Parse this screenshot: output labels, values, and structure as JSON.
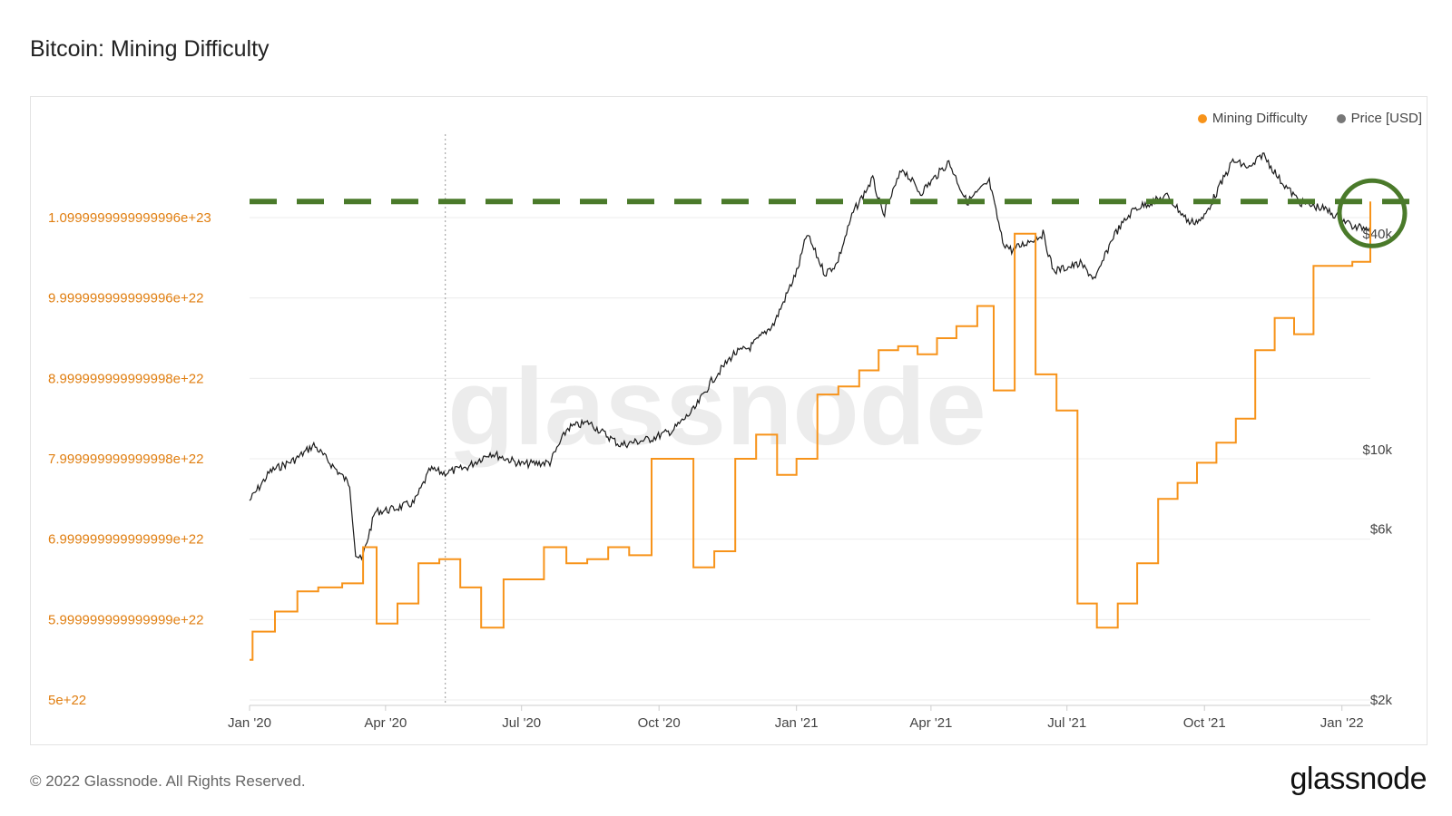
{
  "header": {
    "title": "Bitcoin: Mining Difficulty"
  },
  "footer": {
    "copyright": "© 2022 Glassnode. All Rights Reserved.",
    "brand": "glassnode"
  },
  "watermark": "glassnode",
  "colors": {
    "difficulty": "#f7931a",
    "price": "#1a1a1a",
    "annotation": "#4a7a2a",
    "grid": "#ececec",
    "left_tick": "#e07e10"
  },
  "chart_data": {
    "type": "line",
    "title": "Bitcoin: Mining Difficulty",
    "x_tick_labels": [
      "Jan '20",
      "Apr '20",
      "Jul '20",
      "Oct '20",
      "Jan '21",
      "Apr '21",
      "Jul '21",
      "Oct '21",
      "Jan '22"
    ],
    "x_ticks": [
      "2020-01-01",
      "2020-04-01",
      "2020-07-01",
      "2020-10-01",
      "2021-01-01",
      "2021-04-01",
      "2021-07-01",
      "2021-10-01",
      "2022-01-01"
    ],
    "x_range": [
      "2020-01-01",
      "2022-01-20"
    ],
    "y_left": {
      "tick_labels": [
        "5e+22",
        "5.999999999999999e+22",
        "6.999999999999999e+22",
        "7.999999999999998e+22",
        "8.999999999999998e+22",
        "9.999999999999996e+22",
        "1.0999999999999996e+23"
      ],
      "ticks": [
        5e+22,
        6e+22,
        7e+22,
        8e+22,
        9e+22,
        1e+23,
        1.1e+23
      ],
      "range": [
        5e+22,
        1.13e+23
      ]
    },
    "y_right": {
      "scale": "log",
      "tick_labels": [
        "$2k",
        "$6k",
        "$10k",
        "$40k"
      ],
      "ticks": [
        2000,
        6000,
        10000,
        40000
      ],
      "range": [
        2000,
        63000
      ]
    },
    "grid": true,
    "legend_position": "top-right",
    "series": [
      {
        "name": "Mining Difficulty",
        "axis": "left",
        "color": "#f7931a",
        "step": true,
        "dates": [
          "2020-01-01",
          "2020-01-03",
          "2020-01-18",
          "2020-02-02",
          "2020-02-16",
          "2020-03-03",
          "2020-03-17",
          "2020-03-26",
          "2020-04-09",
          "2020-04-23",
          "2020-05-07",
          "2020-05-21",
          "2020-06-04",
          "2020-06-19",
          "2020-07-03",
          "2020-07-16",
          "2020-07-31",
          "2020-08-14",
          "2020-08-28",
          "2020-09-11",
          "2020-09-26",
          "2020-10-10",
          "2020-10-24",
          "2020-11-07",
          "2020-11-21",
          "2020-12-05",
          "2020-12-19",
          "2021-01-01",
          "2021-01-15",
          "2021-01-29",
          "2021-02-12",
          "2021-02-25",
          "2021-03-10",
          "2021-03-23",
          "2021-04-05",
          "2021-04-18",
          "2021-05-02",
          "2021-05-13",
          "2021-05-27",
          "2021-06-10",
          "2021-06-24",
          "2021-07-08",
          "2021-07-21",
          "2021-08-04",
          "2021-08-17",
          "2021-08-31",
          "2021-09-13",
          "2021-09-26",
          "2021-10-09",
          "2021-10-22",
          "2021-11-04",
          "2021-11-17",
          "2021-11-30",
          "2021-12-13",
          "2021-12-26",
          "2022-01-08",
          "2022-01-20"
        ],
        "values": [
          5.5e+22,
          5.85e+22,
          6.1e+22,
          6.35e+22,
          6.4e+22,
          6.45e+22,
          6.9e+22,
          5.95e+22,
          6.2e+22,
          6.7e+22,
          6.75e+22,
          6.4e+22,
          5.9e+22,
          6.5e+22,
          6.5e+22,
          6.9e+22,
          6.7e+22,
          6.75e+22,
          6.9e+22,
          6.8e+22,
          8e+22,
          8e+22,
          6.65e+22,
          6.85e+22,
          8e+22,
          8.3e+22,
          7.8e+22,
          8e+22,
          8.8e+22,
          8.9e+22,
          9.1e+22,
          9.35e+22,
          9.4e+22,
          9.3e+22,
          9.5e+22,
          9.65e+22,
          9.9e+22,
          8.85e+22,
          1.08e+23,
          9.05e+22,
          8.6e+22,
          6.2e+22,
          5.9e+22,
          6.2e+22,
          6.7e+22,
          7.5e+22,
          7.7e+22,
          7.95e+22,
          8.2e+22,
          8.5e+22,
          9.35e+22,
          9.75e+22,
          9.55e+22,
          1.04e+23,
          1.04e+23,
          1.045e+23,
          1.12e+23
        ]
      },
      {
        "name": "Price [USD]",
        "axis": "right",
        "color": "#1a1a1a",
        "dates": [
          "2020-01-01",
          "2020-01-15",
          "2020-02-01",
          "2020-02-13",
          "2020-03-01",
          "2020-03-08",
          "2020-03-12",
          "2020-03-16",
          "2020-03-25",
          "2020-04-05",
          "2020-04-20",
          "2020-05-01",
          "2020-05-10",
          "2020-05-25",
          "2020-06-10",
          "2020-07-01",
          "2020-07-20",
          "2020-08-01",
          "2020-08-15",
          "2020-09-05",
          "2020-09-25",
          "2020-10-10",
          "2020-10-25",
          "2020-11-05",
          "2020-11-20",
          "2020-12-01",
          "2020-12-17",
          "2021-01-02",
          "2021-01-08",
          "2021-01-20",
          "2021-01-28",
          "2021-02-08",
          "2021-02-21",
          "2021-02-28",
          "2021-03-13",
          "2021-03-25",
          "2021-04-13",
          "2021-04-25",
          "2021-05-10",
          "2021-05-19",
          "2021-05-25",
          "2021-06-15",
          "2021-06-22",
          "2021-07-10",
          "2021-07-20",
          "2021-08-01",
          "2021-08-15",
          "2021-09-06",
          "2021-09-21",
          "2021-09-30",
          "2021-10-20",
          "2021-11-01",
          "2021-11-09",
          "2021-11-20",
          "2021-12-04",
          "2021-12-20",
          "2022-01-05",
          "2022-01-10",
          "2022-01-20"
        ],
        "values": [
          7200,
          8700,
          9400,
          10300,
          8600,
          8000,
          5100,
          4900,
          6700,
          6800,
          7100,
          8800,
          8600,
          8900,
          9800,
          9100,
          9200,
          11500,
          11900,
          10300,
          10700,
          11300,
          13000,
          15500,
          18500,
          19300,
          22500,
          32000,
          40000,
          31000,
          33000,
          46000,
          57000,
          45000,
          61000,
          52000,
          63500,
          49000,
          56000,
          38000,
          36000,
          40000,
          31500,
          33000,
          29800,
          39500,
          47000,
          51000,
          43000,
          44000,
          64000,
          61000,
          67000,
          57000,
          49000,
          47000,
          43000,
          41500,
          42000
        ]
      }
    ],
    "annotations": [
      {
        "type": "dashed-hline",
        "axis": "left",
        "value": 1.12e+23,
        "color": "#4a7a2a"
      },
      {
        "type": "circle",
        "x": "2022-01-20",
        "axis": "left",
        "value": 1.12e+23,
        "color": "#4a7a2a"
      },
      {
        "type": "dotted-vline",
        "x": "2020-05-11"
      }
    ]
  }
}
